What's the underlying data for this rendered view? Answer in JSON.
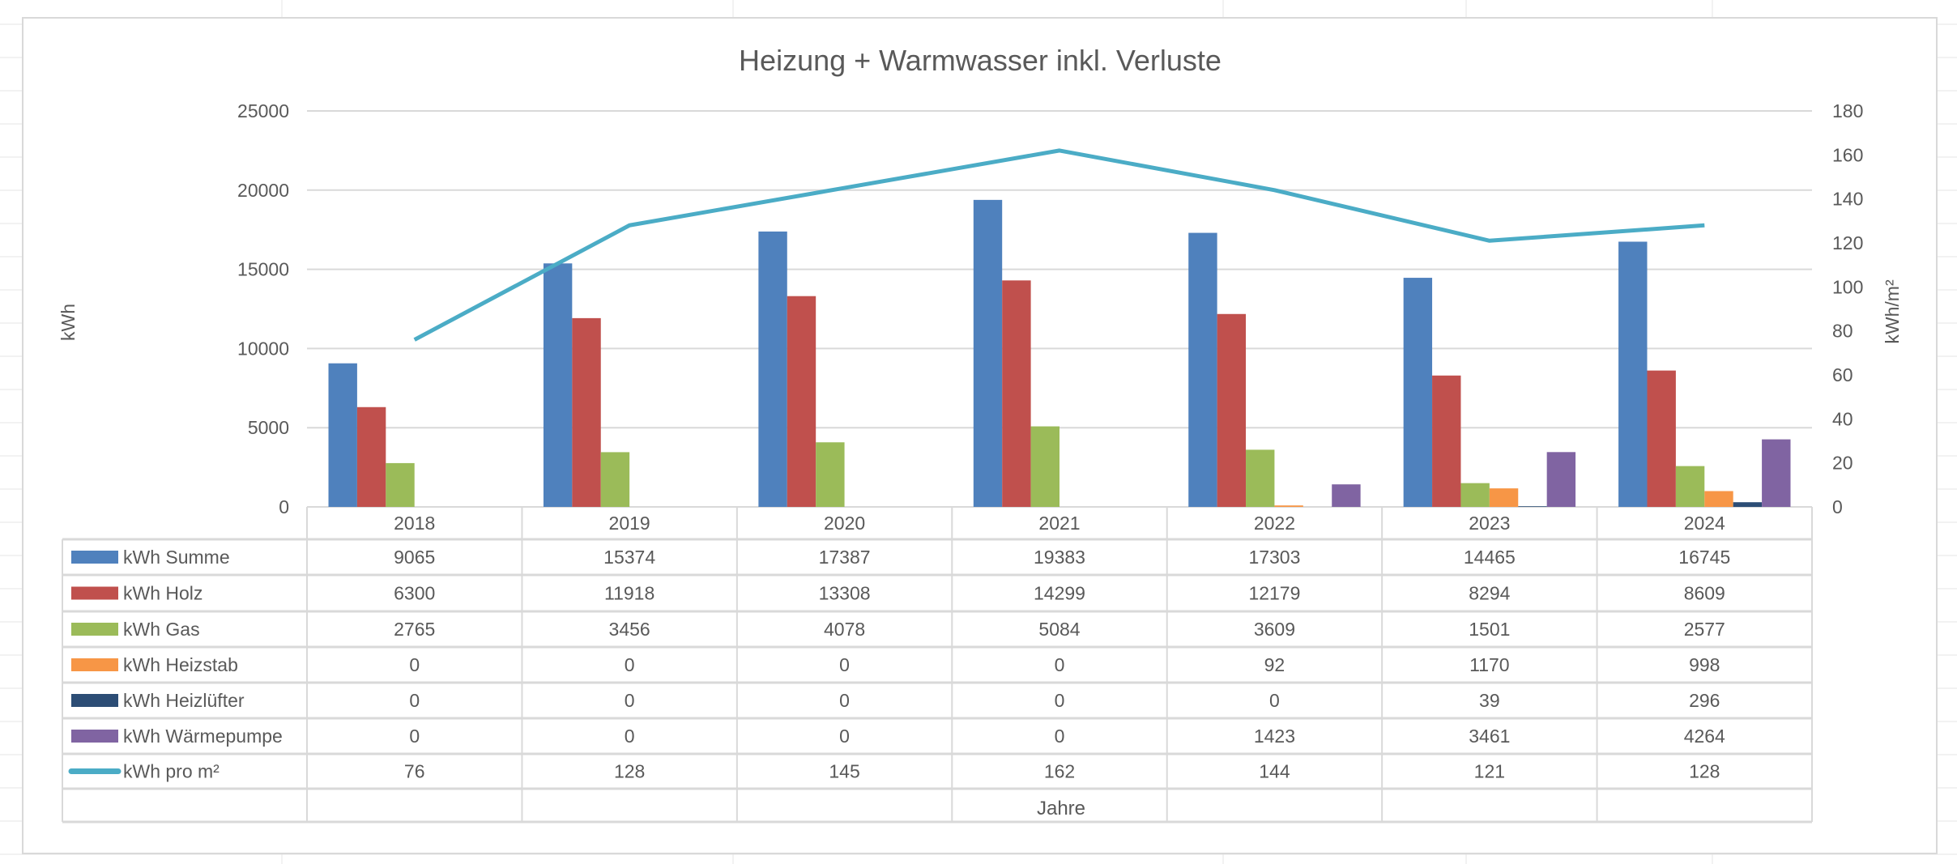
{
  "chart_data": {
    "type": "bar",
    "title": "Heizung + Warmwasser inkl. Verluste",
    "xlabel": "Jahre",
    "ylabel": "kWh",
    "y2label": "kWh/m²",
    "ylim": [
      0,
      25000
    ],
    "yticks": [
      0,
      5000,
      10000,
      15000,
      20000,
      25000
    ],
    "y2lim": [
      0,
      180
    ],
    "y2ticks": [
      0,
      20,
      40,
      60,
      80,
      100,
      120,
      140,
      160,
      180
    ],
    "grid": true,
    "legend": "data-table",
    "categories": [
      "2018",
      "2019",
      "2020",
      "2021",
      "2022",
      "2023",
      "2024"
    ],
    "series": [
      {
        "name": "kWh Summe",
        "type": "bar",
        "axis": "left",
        "color": "#4F81BD",
        "values": [
          9065,
          15374,
          17387,
          19383,
          17303,
          14465,
          16745
        ]
      },
      {
        "name": "kWh Holz",
        "type": "bar",
        "axis": "left",
        "color": "#C0504D",
        "values": [
          6300,
          11918,
          13308,
          14299,
          12179,
          8294,
          8609
        ]
      },
      {
        "name": "kWh Gas",
        "type": "bar",
        "axis": "left",
        "color": "#9BBB59",
        "values": [
          2765,
          3456,
          4078,
          5084,
          3609,
          1501,
          2577
        ]
      },
      {
        "name": "kWh Heizstab",
        "type": "bar",
        "axis": "left",
        "color": "#F79646",
        "values": [
          0,
          0,
          0,
          0,
          92,
          1170,
          998
        ]
      },
      {
        "name": "kWh Heizlüfter",
        "type": "bar",
        "axis": "left",
        "color": "#2C4D75",
        "values": [
          0,
          0,
          0,
          0,
          0,
          39,
          296
        ]
      },
      {
        "name": "kWh Wärmepumpe",
        "type": "bar",
        "axis": "left",
        "color": "#8064A2",
        "values": [
          0,
          0,
          0,
          0,
          1423,
          3461,
          4264
        ]
      },
      {
        "name": "kWh pro m²",
        "type": "line",
        "axis": "right",
        "color": "#4BACC6",
        "values": [
          76,
          128,
          145,
          162,
          144,
          121,
          128
        ]
      }
    ]
  }
}
